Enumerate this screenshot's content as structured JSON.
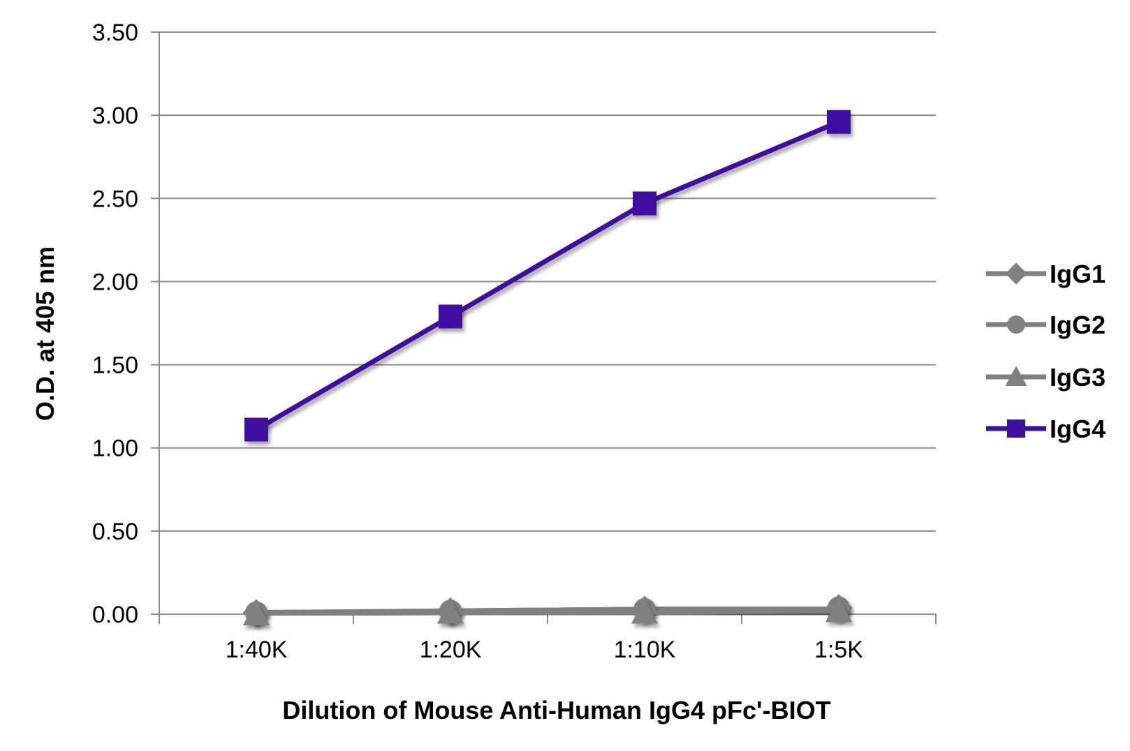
{
  "chart_data": {
    "type": "line",
    "title": "",
    "xlabel": "Dilution of Mouse Anti-Human IgG4 pFc'-BIOT",
    "ylabel": "O.D. at 405 nm",
    "categories": [
      "1:40K",
      "1:20K",
      "1:10K",
      "1:5K"
    ],
    "ylim": [
      0,
      3.5
    ],
    "yticks": [
      "0.00",
      "0.50",
      "1.00",
      "1.50",
      "2.00",
      "2.50",
      "3.00",
      "3.50"
    ],
    "grid": true,
    "legend_position": "right",
    "series": [
      {
        "name": "IgG1",
        "marker": "diamond",
        "color": "#808080",
        "values": [
          0.01,
          0.02,
          0.03,
          0.04
        ]
      },
      {
        "name": "IgG2",
        "marker": "circle",
        "color": "#808080",
        "values": [
          0.01,
          0.02,
          0.03,
          0.04
        ]
      },
      {
        "name": "IgG3",
        "marker": "triangle",
        "color": "#808080",
        "values": [
          0.0,
          0.01,
          0.01,
          0.02
        ]
      },
      {
        "name": "IgG4",
        "marker": "square",
        "color": "#3f0fa0",
        "values": [
          1.11,
          1.79,
          2.47,
          2.96
        ]
      }
    ]
  }
}
